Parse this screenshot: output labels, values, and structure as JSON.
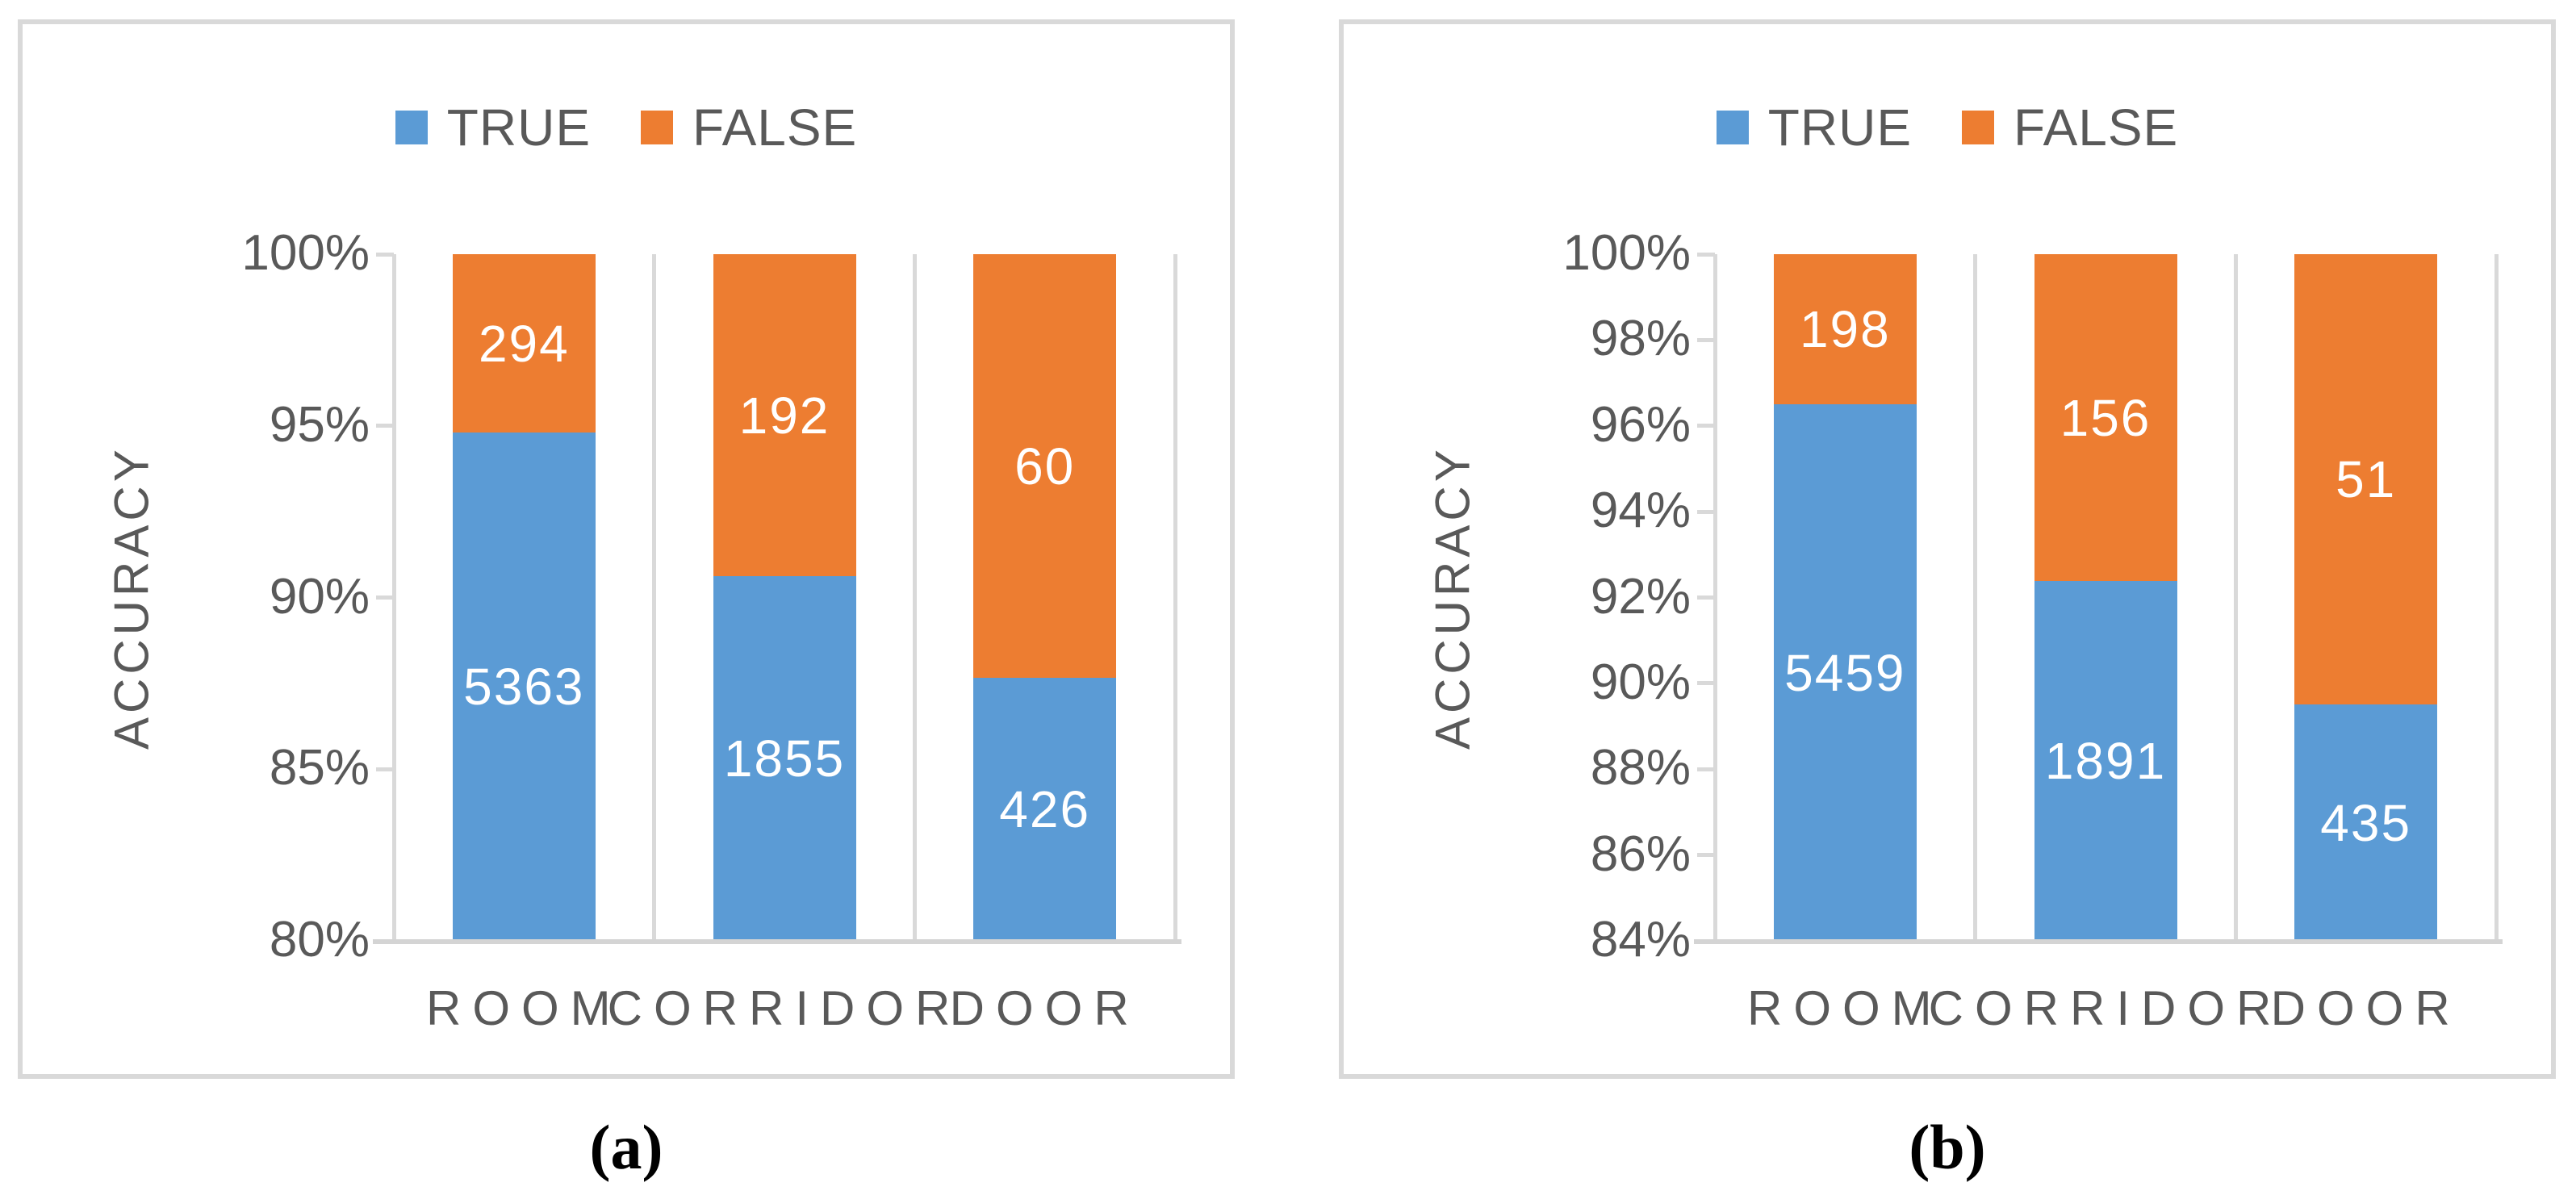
{
  "colors": {
    "true_series": "#5B9BD5",
    "false_series": "#ED7D31",
    "chart_text": "#595959",
    "axis_line": "#D9D9D9",
    "value_label_text": "#FFFFFF",
    "panel_border": "#D9D9D9",
    "caption_text": "#000000"
  },
  "chart_data": [
    {
      "type": "bar",
      "stacking": "100-percent-stacked-column",
      "caption": "(a)",
      "categories": [
        "ROOM",
        "CORRIDOR",
        "DOOR"
      ],
      "series": [
        {
          "name": "TRUE",
          "color": "#5B9BD5",
          "values": [
            5363,
            1855,
            426
          ]
        },
        {
          "name": "FALSE",
          "color": "#ED7D31",
          "values": [
            294,
            192,
            60
          ]
        }
      ],
      "ylabel": "ACCURACY",
      "xlabel": "",
      "ylim": [
        80,
        100
      ],
      "ytick_labels": [
        "100%",
        "95%",
        "90%",
        "85%",
        "80%"
      ],
      "legend_position": "top-center",
      "grid": "vertical-category-separators",
      "value_labels": "center-white"
    },
    {
      "type": "bar",
      "stacking": "100-percent-stacked-column",
      "caption": "(b)",
      "categories": [
        "ROOM",
        "CORRIDOR",
        "DOOR"
      ],
      "series": [
        {
          "name": "TRUE",
          "color": "#5B9BD5",
          "values": [
            5459,
            1891,
            435
          ]
        },
        {
          "name": "FALSE",
          "color": "#ED7D31",
          "values": [
            198,
            156,
            51
          ]
        }
      ],
      "ylabel": "ACCURACY",
      "xlabel": "",
      "ylim": [
        84,
        100
      ],
      "ytick_labels": [
        "100%",
        "98%",
        "96%",
        "94%",
        "92%",
        "90%",
        "88%",
        "86%",
        "84%"
      ],
      "legend_position": "top-center",
      "grid": "vertical-category-separators",
      "value_labels": "center-white"
    }
  ]
}
